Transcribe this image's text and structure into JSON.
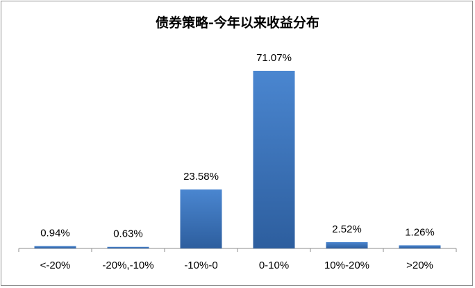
{
  "chart_data": {
    "type": "bar",
    "title": "债券策略-今年以来收益分布",
    "categories": [
      "<-20%",
      "-20%,-10%",
      "-10%-0",
      "0-10%",
      "10%-20%",
      ">20%"
    ],
    "values": [
      0.94,
      0.63,
      23.58,
      71.07,
      2.52,
      1.26
    ],
    "data_labels": [
      "0.94%",
      "0.63%",
      "23.58%",
      "71.07%",
      "2.52%",
      "1.26%"
    ],
    "ylim": [
      0,
      80
    ],
    "grid": false,
    "legend": "none",
    "xlabel": "",
    "ylabel": "",
    "colors": {
      "bar_top": "#4a86d0",
      "bar_bottom": "#2d5e9e",
      "axis": "#8c8c8c"
    }
  }
}
